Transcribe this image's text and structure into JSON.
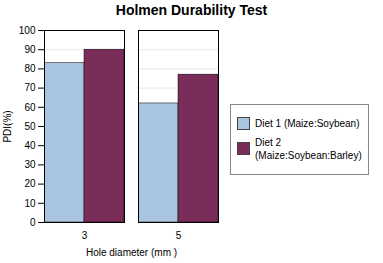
{
  "chart_data": {
    "type": "bar",
    "title": "Holmen Durability Test",
    "xlabel": "Hole diameter (mm )",
    "ylabel": "PDI(%)",
    "categories": [
      "3",
      "5"
    ],
    "series": [
      {
        "name": "Diet 1 (Maize:Soybean)",
        "color": "#a8c4e0",
        "values": [
          83,
          62
        ]
      },
      {
        "name": "Diet 2\n(Maize:Soybean:Barley)",
        "color": "#7b2d5a",
        "values": [
          90,
          77
        ]
      }
    ],
    "ylim": [
      0,
      100
    ],
    "yticks": [
      0,
      10,
      20,
      30,
      40,
      50,
      60,
      70,
      80,
      90,
      100
    ],
    "grid": true,
    "legend": "right"
  }
}
